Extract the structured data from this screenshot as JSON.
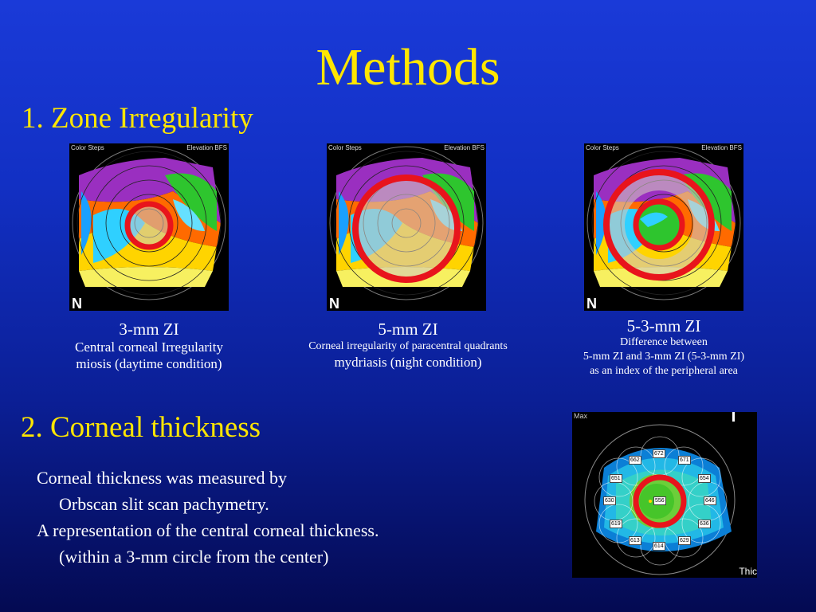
{
  "slide": {
    "title": "Methods",
    "section1_heading": "1. Zone Irregularity",
    "section2_heading": "2. Corneal thickness"
  },
  "maps": {
    "top_left_label": "Color Steps",
    "top_right_label": "Elevation BFS",
    "orientation_label": "N"
  },
  "zi_items": [
    {
      "title": "3-mm ZI",
      "line1": "Central corneal Irregularity",
      "line2": "miosis (daytime condition)"
    },
    {
      "title": "5-mm ZI",
      "line1": "Corneal irregularity of paracentral quadrants",
      "line2": "mydriasis (night condition)"
    },
    {
      "title": "5-3-mm ZI",
      "line1": "Difference between",
      "line2": "5-mm ZI and 3-mm ZI (5-3-mm ZI)",
      "line3": "as an index of the peripheral area"
    }
  ],
  "thickness_text": {
    "line1": "Corneal thickness was measured by",
    "line2": "Orbscan slit scan pachymetry.",
    "line3": "A representation of the central corneal thickness.",
    "line4": "(within a 3-mm circle from the center)"
  },
  "pachymetry_map": {
    "max_label": "Max",
    "corner_label": "Thic",
    "center_value": "556",
    "values": [
      "672",
      "662",
      "671",
      "651",
      "654",
      "630",
      "646",
      "619",
      "636",
      "613",
      "629",
      "614"
    ]
  },
  "colors": {
    "heading": "#ffe600",
    "text": "#ffffff",
    "ring": "#e8141c"
  }
}
